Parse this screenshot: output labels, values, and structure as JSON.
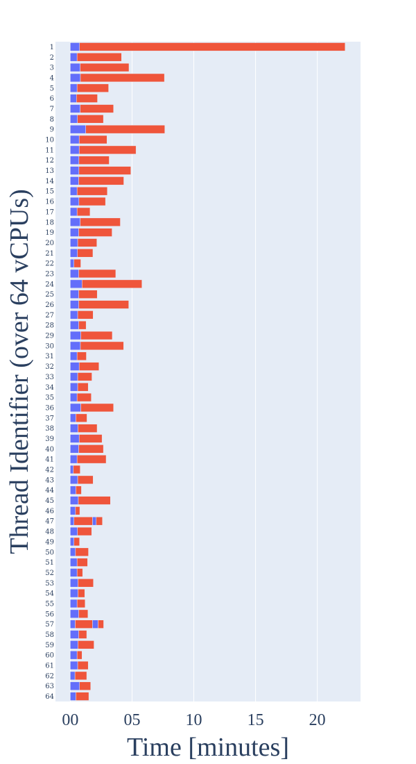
{
  "chart_data": {
    "type": "bar",
    "orientation": "horizontal",
    "stacked": true,
    "title": "",
    "xlabel": "Time [minutes]",
    "ylabel": "Thread Identifier (over 64 vCPUs)",
    "xlim": [
      -1.2,
      23.5
    ],
    "x_ticks": [
      {
        "value": 0,
        "label": "00"
      },
      {
        "value": 5,
        "label": "05"
      },
      {
        "value": 10,
        "label": "10"
      },
      {
        "value": 15,
        "label": "15"
      },
      {
        "value": 20,
        "label": "20"
      }
    ],
    "grid": true,
    "legend": "none",
    "colors": {
      "background": "#e5ecf6",
      "grid": "#ffffff",
      "series_a": "#636efa",
      "series_b": "#ef553b"
    },
    "categories": [
      "1",
      "2",
      "3",
      "4",
      "5",
      "6",
      "7",
      "8",
      "9",
      "10",
      "11",
      "12",
      "13",
      "14",
      "15",
      "16",
      "17",
      "18",
      "19",
      "20",
      "21",
      "22",
      "23",
      "24",
      "25",
      "26",
      "27",
      "28",
      "29",
      "30",
      "31",
      "32",
      "33",
      "34",
      "35",
      "36",
      "37",
      "38",
      "39",
      "40",
      "41",
      "42",
      "43",
      "44",
      "45",
      "46",
      "47",
      "48",
      "49",
      "50",
      "51",
      "52",
      "53",
      "54",
      "55",
      "56",
      "57",
      "58",
      "59",
      "60",
      "61",
      "62",
      "63",
      "64"
    ],
    "series": [
      {
        "values": [
          0.75,
          0.55,
          0.8,
          0.82,
          0.55,
          0.5,
          0.8,
          0.58,
          1.25,
          0.72,
          0.72,
          0.7,
          0.7,
          0.68,
          0.55,
          0.7,
          0.55,
          0.8,
          0.68,
          0.6,
          0.58,
          0.3,
          0.68,
          0.95,
          0.68,
          0.68,
          0.6,
          0.68,
          0.85,
          0.82,
          0.55,
          0.72,
          0.6,
          0.6,
          0.55,
          0.85,
          0.45,
          0.62,
          0.72,
          0.68,
          0.55,
          0.25,
          0.6,
          0.45,
          0.65,
          0.42,
          0.3,
          0.58,
          0.3,
          0.42,
          0.55,
          0.55,
          0.62,
          0.62,
          0.55,
          0.68,
          0.4,
          0.68,
          0.62,
          0.55,
          0.6,
          0.38,
          0.75,
          0.45
        ]
      },
      {
        "values": [
          21.5,
          3.6,
          3.95,
          6.8,
          2.55,
          1.7,
          2.7,
          2.1,
          6.4,
          2.25,
          4.6,
          2.45,
          4.2,
          3.65,
          2.45,
          2.15,
          1.05,
          3.25,
          2.7,
          1.55,
          1.25,
          0.55,
          3.0,
          4.85,
          1.5,
          4.05,
          1.25,
          0.6,
          2.55,
          3.5,
          0.75,
          1.6,
          1.15,
          0.85,
          1.15,
          2.65,
          0.9,
          1.55,
          1.85,
          2.0,
          2.35,
          0.55,
          1.25,
          0.45,
          2.6,
          0.35,
          1.5,
          1.15,
          0.45,
          1.05,
          0.85,
          0.45,
          1.25,
          0.55,
          0.65,
          0.75,
          1.4,
          0.65,
          1.3,
          0.4,
          0.85,
          0.95,
          0.9,
          1.05
        ]
      }
    ],
    "minor_segments": [
      {
        "category": "47",
        "values": [
          0.3,
          0.5
        ]
      },
      {
        "category": "57",
        "values": [
          0.45,
          0.45
        ]
      }
    ]
  }
}
